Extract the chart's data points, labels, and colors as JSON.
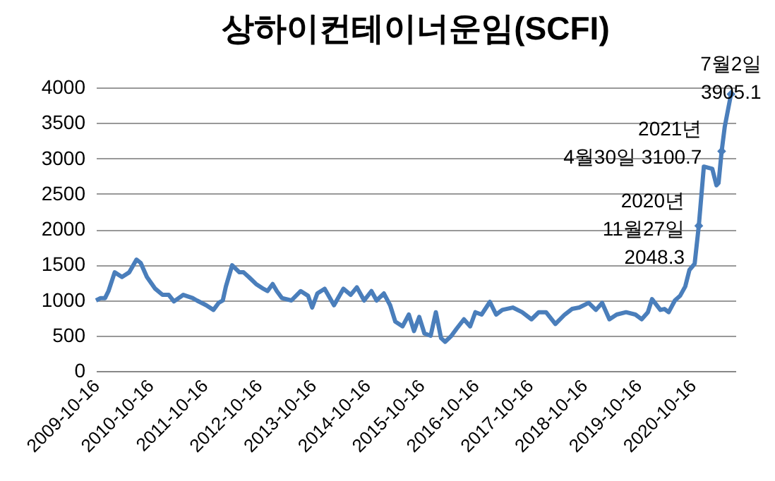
{
  "chart_data": {
    "type": "line",
    "title": "상하이컨테이너운임(SCFI)",
    "xlim": [
      "2009-10-16",
      "2021-08-01"
    ],
    "xticks": [
      "2009-10-16",
      "2010-10-16",
      "2011-10-16",
      "2012-10-16",
      "2013-10-16",
      "2014-10-16",
      "2015-10-16",
      "2016-10-16",
      "2017-10-16",
      "2018-10-16",
      "2019-10-16",
      "2020-10-16"
    ],
    "ylim": [
      0,
      4000
    ],
    "yticks": [
      0,
      500,
      1000,
      1500,
      2000,
      2500,
      3000,
      3500,
      4000
    ],
    "grid": "y",
    "series": [
      {
        "type": "line",
        "color": "#4a7ebb",
        "marker": "none",
        "x": [
          "2009-10-16",
          "2009-11-16",
          "2009-12-16",
          "2010-01-08",
          "2010-02-19",
          "2010-04-09",
          "2010-05-28",
          "2010-07-16",
          "2010-08-13",
          "2010-09-24",
          "2010-11-19",
          "2011-01-07",
          "2011-02-18",
          "2011-03-25",
          "2011-05-27",
          "2011-07-29",
          "2011-08-26",
          "2011-10-28",
          "2011-12-16",
          "2012-01-20",
          "2012-02-17",
          "2012-03-09",
          "2012-04-20",
          "2012-06-08",
          "2012-07-06",
          "2012-08-10",
          "2012-09-28",
          "2012-11-16",
          "2012-12-14",
          "2013-01-18",
          "2013-02-15",
          "2013-03-22",
          "2013-05-24",
          "2013-07-26",
          "2013-09-13",
          "2013-10-11",
          "2013-11-15",
          "2014-01-03",
          "2014-03-07",
          "2014-05-09",
          "2014-06-27",
          "2014-08-08",
          "2014-09-26",
          "2014-11-14",
          "2014-12-19",
          "2015-02-06",
          "2015-03-20",
          "2015-04-24",
          "2015-06-12",
          "2015-07-24",
          "2015-08-28",
          "2015-10-02",
          "2015-11-06",
          "2015-12-18",
          "2016-01-22",
          "2016-02-26",
          "2016-03-25",
          "2016-05-06",
          "2016-06-10",
          "2016-07-29",
          "2016-09-09",
          "2016-10-14",
          "2016-11-25",
          "2017-01-20",
          "2017-03-03",
          "2017-04-14",
          "2017-06-23",
          "2017-08-25",
          "2017-10-27",
          "2017-12-15",
          "2018-02-02",
          "2018-04-06",
          "2018-06-08",
          "2018-07-27",
          "2018-09-14",
          "2018-11-16",
          "2019-01-04",
          "2019-02-15",
          "2019-04-05",
          "2019-05-24",
          "2019-07-26",
          "2019-09-27",
          "2019-11-08",
          "2019-12-20",
          "2020-01-17",
          "2020-03-13",
          "2020-04-10",
          "2020-05-08",
          "2020-06-19",
          "2020-07-24",
          "2020-08-28",
          "2020-09-25",
          "2020-10-30",
          "2020-11-27",
          "2020-12-31",
          "2021-02-26",
          "2021-03-26",
          "2021-04-09",
          "2021-04-30",
          "2021-05-21",
          "2021-07-02"
        ],
        "values": [
          995,
          1028,
          1028,
          1127,
          1392,
          1326,
          1392,
          1571,
          1525,
          1326,
          1160,
          1074,
          1074,
          981,
          1074,
          1028,
          995,
          928,
          862,
          961,
          995,
          1193,
          1492,
          1392,
          1392,
          1326,
          1227,
          1160,
          1127,
          1227,
          1127,
          1028,
          995,
          1127,
          1061,
          895,
          1094,
          1160,
          928,
          1160,
          1074,
          1180,
          995,
          1127,
          995,
          1094,
          928,
          696,
          630,
          796,
          564,
          762,
          530,
          497,
          829,
          464,
          411,
          497,
          597,
          729,
          630,
          829,
          796,
          975,
          796,
          862,
          895,
          829,
          729,
          829,
          829,
          663,
          796,
          875,
          895,
          961,
          862,
          961,
          729,
          796,
          829,
          796,
          729,
          829,
          1014,
          862,
          875,
          829,
          995,
          1061,
          1193,
          1425,
          1512,
          2048.3,
          2884,
          2851,
          2619,
          2652,
          3100.7,
          3448,
          3905.1
        ]
      },
      {
        "type": "scatter",
        "color": "#4a7ebb",
        "marker": "diamond",
        "x": [
          "2020-11-27",
          "2021-04-30",
          "2021-07-02"
        ],
        "values": [
          2048.3,
          3100.7,
          3905.1
        ]
      }
    ],
    "annotations": [
      {
        "text": "7월2일\n3905.1",
        "x": "2021-07-02",
        "y": 3905.1
      },
      {
        "text": "2021년\n4월30일 3100.7",
        "x": "2021-04-30",
        "y": 3100.7
      },
      {
        "text": "2020년\n11월27일\n2048.3",
        "x": "2020-11-27",
        "y": 2048.3
      }
    ]
  }
}
